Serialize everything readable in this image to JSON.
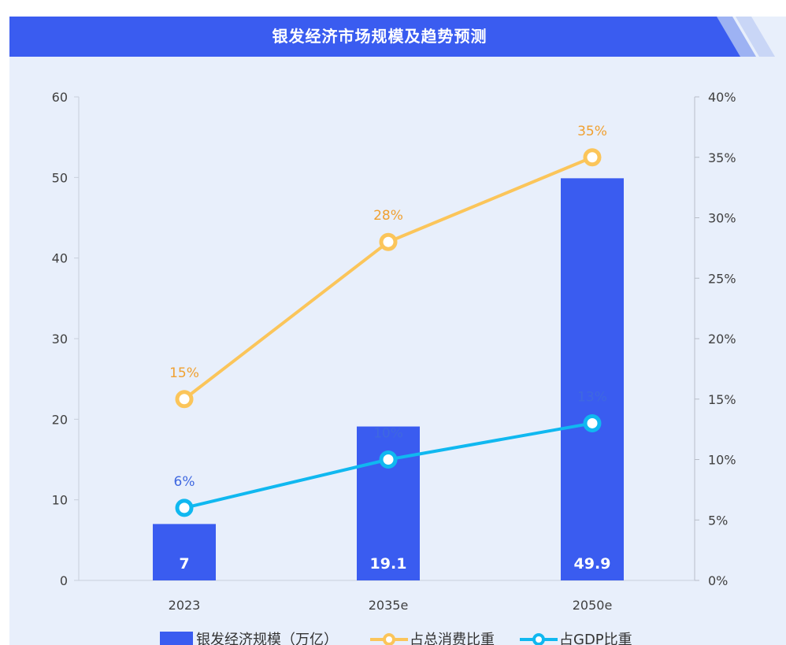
{
  "title": "银发经济市场规模及趋势预测",
  "colors": {
    "bar": "#3a5cf0",
    "consumption_line": "#fbc55a",
    "consumption_label": "#f0a030",
    "gdp_line": "#10b8f0",
    "gdp_label": "#3f68e0",
    "panel_bg": "#e8effb",
    "banner": "#3a5cf0"
  },
  "chart_data": {
    "type": "bar",
    "title": "银发经济市场规模及趋势预测",
    "categories": [
      "2023",
      "2035e",
      "2050e"
    ],
    "series": [
      {
        "name": "银发经济规模（万亿）",
        "type": "bar",
        "axis": "left",
        "values": [
          7,
          19.1,
          49.9
        ]
      },
      {
        "name": "占总消费比重",
        "type": "line",
        "axis": "right",
        "values": [
          15,
          28,
          35
        ],
        "labels": [
          "15%",
          "28%",
          "35%"
        ]
      },
      {
        "name": "占GDP比重",
        "type": "line",
        "axis": "right",
        "values": [
          6,
          10,
          13
        ],
        "labels": [
          "6%",
          "10%",
          "13%"
        ]
      }
    ],
    "y_left": {
      "ylim": [
        0,
        60
      ],
      "ticks": [
        "0",
        "10",
        "20",
        "30",
        "40",
        "50",
        "60"
      ]
    },
    "y_right": {
      "ylim": [
        0,
        40
      ],
      "ticks": [
        "0%",
        "5%",
        "10%",
        "15%",
        "20%",
        "25%",
        "30%",
        "35%",
        "40%"
      ]
    },
    "grid": false,
    "legend": "bottom"
  }
}
